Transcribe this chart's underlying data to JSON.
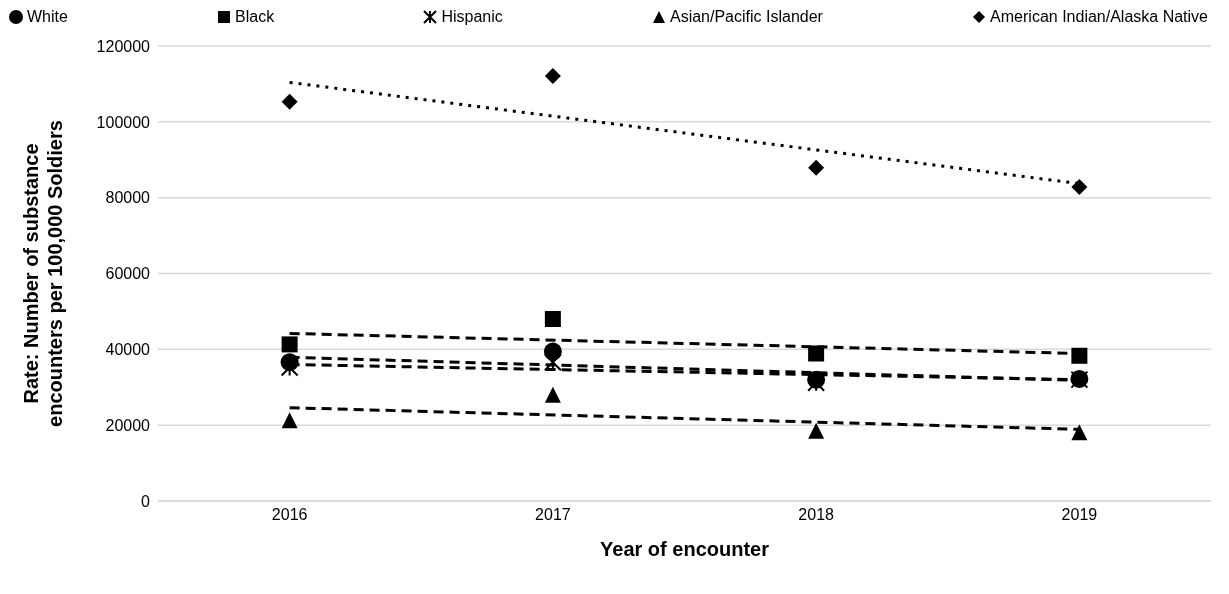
{
  "chart_data": {
    "type": "scatter",
    "xlabel": "Year of encounter",
    "ylabel": "Rate: Number of substance encounters per 100,000 Soldiers",
    "xlim": [
      2015.5,
      2019.5
    ],
    "xticks": [
      2016,
      2017,
      2018,
      2019
    ],
    "ylim": [
      0,
      120000
    ],
    "yticks": [
      0,
      20000,
      40000,
      60000,
      80000,
      100000,
      120000
    ],
    "grid": "y",
    "legend": "top",
    "x": [
      2016,
      2017,
      2018,
      2019
    ],
    "series": [
      {
        "name": "White",
        "type": "scatter",
        "marker": "circle",
        "color": "#000000",
        "values": [
          36600,
          39400,
          32000,
          32200
        ]
      },
      {
        "name": "Black",
        "type": "scatter",
        "marker": "square",
        "color": "#000000",
        "values": [
          41300,
          48000,
          38900,
          38300
        ]
      },
      {
        "name": "Hispanic",
        "type": "scatter",
        "marker": "cross",
        "color": "#000000",
        "values": [
          35200,
          36600,
          31200,
          32000
        ]
      },
      {
        "name": "Asian/Pacific Islander",
        "type": "scatter",
        "marker": "triangle",
        "color": "#000000",
        "values": [
          21300,
          28000,
          18500,
          18100
        ]
      },
      {
        "name": "American Indian/Alaska Native",
        "type": "scatter",
        "marker": "diamond",
        "color": "#000000",
        "values": [
          105300,
          112100,
          87900,
          82800
        ]
      },
      {
        "type": "line",
        "line_style": "dashed",
        "marker": "none",
        "color": "#000000",
        "values": [
          37900,
          null,
          null,
          31800
        ]
      },
      {
        "type": "line",
        "line_style": "dashed",
        "marker": "none",
        "color": "#000000",
        "values": [
          44200,
          null,
          null,
          38900
        ]
      },
      {
        "type": "line",
        "line_style": "dashed",
        "marker": "none",
        "color": "#000000",
        "values": [
          36000,
          null,
          null,
          32000
        ]
      },
      {
        "type": "line",
        "line_style": "dashed",
        "marker": "none",
        "color": "#000000",
        "values": [
          24600,
          null,
          null,
          18900
        ]
      },
      {
        "type": "line",
        "line_style": "dotted",
        "marker": "none",
        "color": "#000000",
        "values": [
          110400,
          null,
          null,
          83700
        ]
      }
    ]
  }
}
